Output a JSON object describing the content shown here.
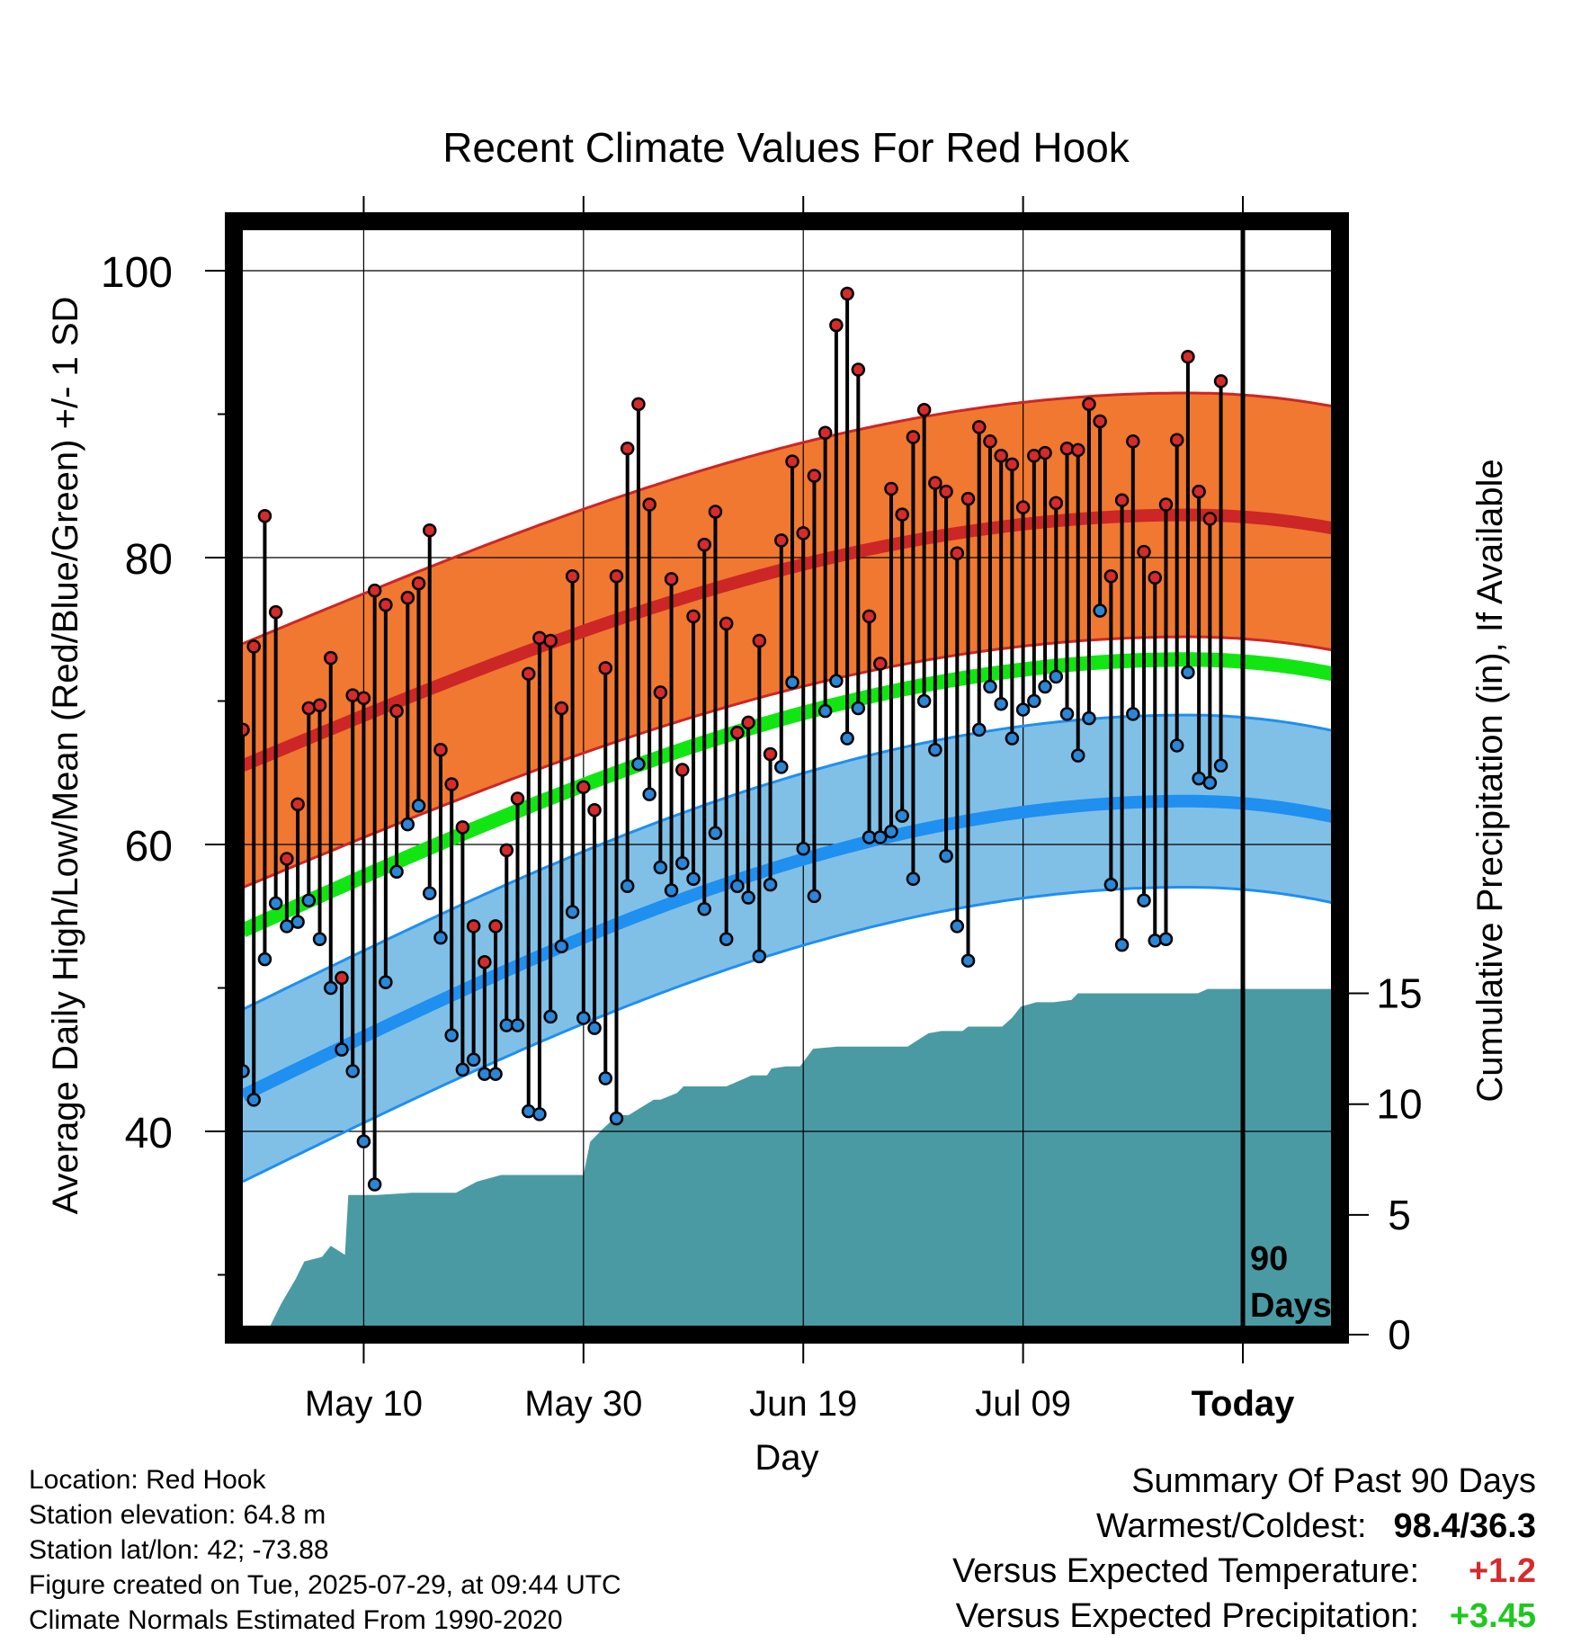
{
  "chart_data": {
    "type": "line",
    "title": "Recent Climate Values For Red Hook",
    "xlabel": "Day",
    "ylabel": "Average Daily High/Low/Mean (Red/Blue/Green) +/- 1 SD",
    "y2label": "Cumulative Precipitation (in), If Available",
    "ylim": [
      27,
      102
    ],
    "y2lim": [
      0,
      15
    ],
    "yticks": [
      40,
      60,
      80,
      100
    ],
    "y2ticks": [
      0,
      5,
      10,
      15
    ],
    "xticks": [
      {
        "day": 12,
        "label": "May 10"
      },
      {
        "day": 32,
        "label": "May 30"
      },
      {
        "day": 52,
        "label": "Jun 19"
      },
      {
        "day": 72,
        "label": "Jul 09"
      },
      {
        "day": 92,
        "label": "Today"
      }
    ],
    "today_day": 92,
    "today_label": [
      "90",
      "Days"
    ],
    "xlim": [
      0.7,
      101.7
    ],
    "colors": {
      "high_band": "#f07830",
      "high_line": "#cc2626",
      "low_band": "#80c0e6",
      "low_line": "#1f8ff0",
      "mean_line": "#12e612",
      "precip": "#4a9aa3",
      "high_dot": "#d62b2b",
      "low_dot": "#2a86d6"
    },
    "normals": {
      "days": [
        1,
        101
      ],
      "high": [
        65.5,
        82.7
      ],
      "high_sd": 8.5,
      "low": [
        42.5,
        62.7
      ],
      "low_sd": 6.0,
      "mean": [
        54.0,
        72.6
      ]
    },
    "series": [
      {
        "name": "High",
        "values": [
          68.0,
          73.8,
          82.9,
          76.2,
          59.0,
          62.8,
          69.5,
          69.7,
          73.0,
          50.7,
          70.4,
          70.2,
          77.7,
          76.7,
          69.3,
          77.2,
          78.2,
          81.9,
          66.6,
          64.2,
          61.2,
          54.3,
          51.8,
          54.3,
          59.6,
          63.2,
          71.9,
          74.4,
          74.2,
          69.5,
          78.7,
          64.0,
          62.4,
          72.3,
          78.7,
          87.6,
          90.7,
          83.7,
          70.6,
          78.5,
          65.2,
          75.9,
          80.9,
          83.2,
          75.4,
          67.8,
          68.5,
          74.2,
          66.3,
          81.2,
          86.7,
          81.7,
          85.7,
          88.7,
          96.2,
          98.4,
          93.1,
          75.9,
          72.6,
          84.8,
          83.0,
          88.4,
          90.3,
          85.2,
          84.6,
          80.3,
          84.1,
          89.1,
          88.1,
          87.1,
          86.5,
          83.5,
          87.1,
          87.3,
          83.8,
          87.6,
          87.5,
          90.7,
          89.5,
          78.7,
          84.0,
          88.1,
          80.4,
          78.6,
          83.7,
          88.2,
          94.0,
          84.6,
          82.7,
          92.3
        ]
      },
      {
        "name": "Low",
        "values": [
          44.2,
          42.2,
          52.0,
          55.9,
          54.3,
          54.6,
          56.1,
          53.4,
          50.0,
          45.7,
          44.2,
          39.3,
          36.3,
          50.4,
          58.1,
          61.4,
          62.7,
          56.6,
          53.5,
          46.7,
          44.3,
          45.0,
          44.0,
          44.0,
          47.4,
          47.4,
          41.4,
          41.2,
          48.0,
          52.9,
          55.3,
          47.9,
          47.2,
          43.7,
          40.9,
          57.1,
          65.6,
          63.5,
          58.4,
          56.8,
          58.7,
          57.6,
          55.5,
          60.8,
          53.4,
          57.1,
          56.3,
          52.2,
          57.2,
          65.4,
          71.3,
          59.7,
          56.4,
          69.3,
          71.4,
          67.4,
          69.5,
          60.5,
          60.5,
          60.9,
          62.0,
          57.6,
          70.0,
          66.6,
          59.2,
          54.3,
          51.9,
          68.0,
          71.0,
          69.8,
          67.4,
          69.4,
          70.0,
          71.0,
          71.7,
          69.1,
          66.2,
          68.8,
          76.3,
          57.2,
          53.0,
          69.1,
          56.1,
          53.3,
          53.4,
          66.9,
          72.0,
          64.6,
          64.3,
          65.5
        ]
      }
    ],
    "precip_cumulative": {
      "x": [
        1.0,
        3.5,
        4.5,
        5.8,
        6.6,
        8.2,
        9.0,
        10.3,
        10.6,
        13.2,
        16.4,
        18.3,
        20.4,
        22.3,
        24.5,
        27.8,
        32.0,
        32.6,
        33.8,
        35.1,
        36.1,
        38.4,
        39.0,
        40.5,
        41.1,
        43.2,
        45.0,
        47.3,
        48.7,
        49.1,
        50.4,
        51.7,
        52.9,
        55.1,
        56.5,
        60.5,
        61.5,
        63.4,
        64.6,
        66.5,
        67.0,
        70.1,
        71.0,
        71.8,
        73.2,
        74.8,
        76.4,
        77.0,
        86.8,
        87.9,
        88.8,
        93.0,
        101.0
      ],
      "y": [
        0.0,
        0.0,
        1.0,
        2.1,
        2.9,
        3.1,
        3.6,
        3.2,
        5.9,
        5.9,
        6.0,
        6.0,
        6.0,
        6.5,
        6.8,
        6.8,
        6.8,
        8.3,
        8.9,
        9.5,
        9.5,
        10.2,
        10.2,
        10.5,
        10.8,
        10.8,
        10.8,
        11.3,
        11.3,
        11.6,
        11.7,
        11.7,
        12.5,
        12.6,
        12.6,
        12.6,
        12.6,
        13.2,
        13.3,
        13.3,
        13.5,
        13.5,
        13.9,
        14.4,
        14.6,
        14.6,
        14.7,
        15.0,
        15.0,
        15.0,
        15.2,
        15.2,
        15.2
      ]
    }
  },
  "footer": {
    "location": "Location: Red Hook",
    "elevation": "Station elevation: 64.8 m",
    "latlon": "Station lat/lon: 42; -73.88",
    "created": "Figure created on Tue, 2025-07-29, at 09:44 UTC",
    "normals": "Climate Normals Estimated From 1990-2020"
  },
  "summary": {
    "heading": "Summary Of Past 90 Days",
    "warm_cold_label": "Warmest/Coldest:",
    "warm_cold_value": "98.4/36.3",
    "temp_label": "Versus Expected Temperature:",
    "temp_value": "+1.2",
    "temp_color": "#d62b2b",
    "precip_label": "Versus Expected Precipitation:",
    "precip_value": "+3.45",
    "precip_color": "#1ec81e"
  }
}
